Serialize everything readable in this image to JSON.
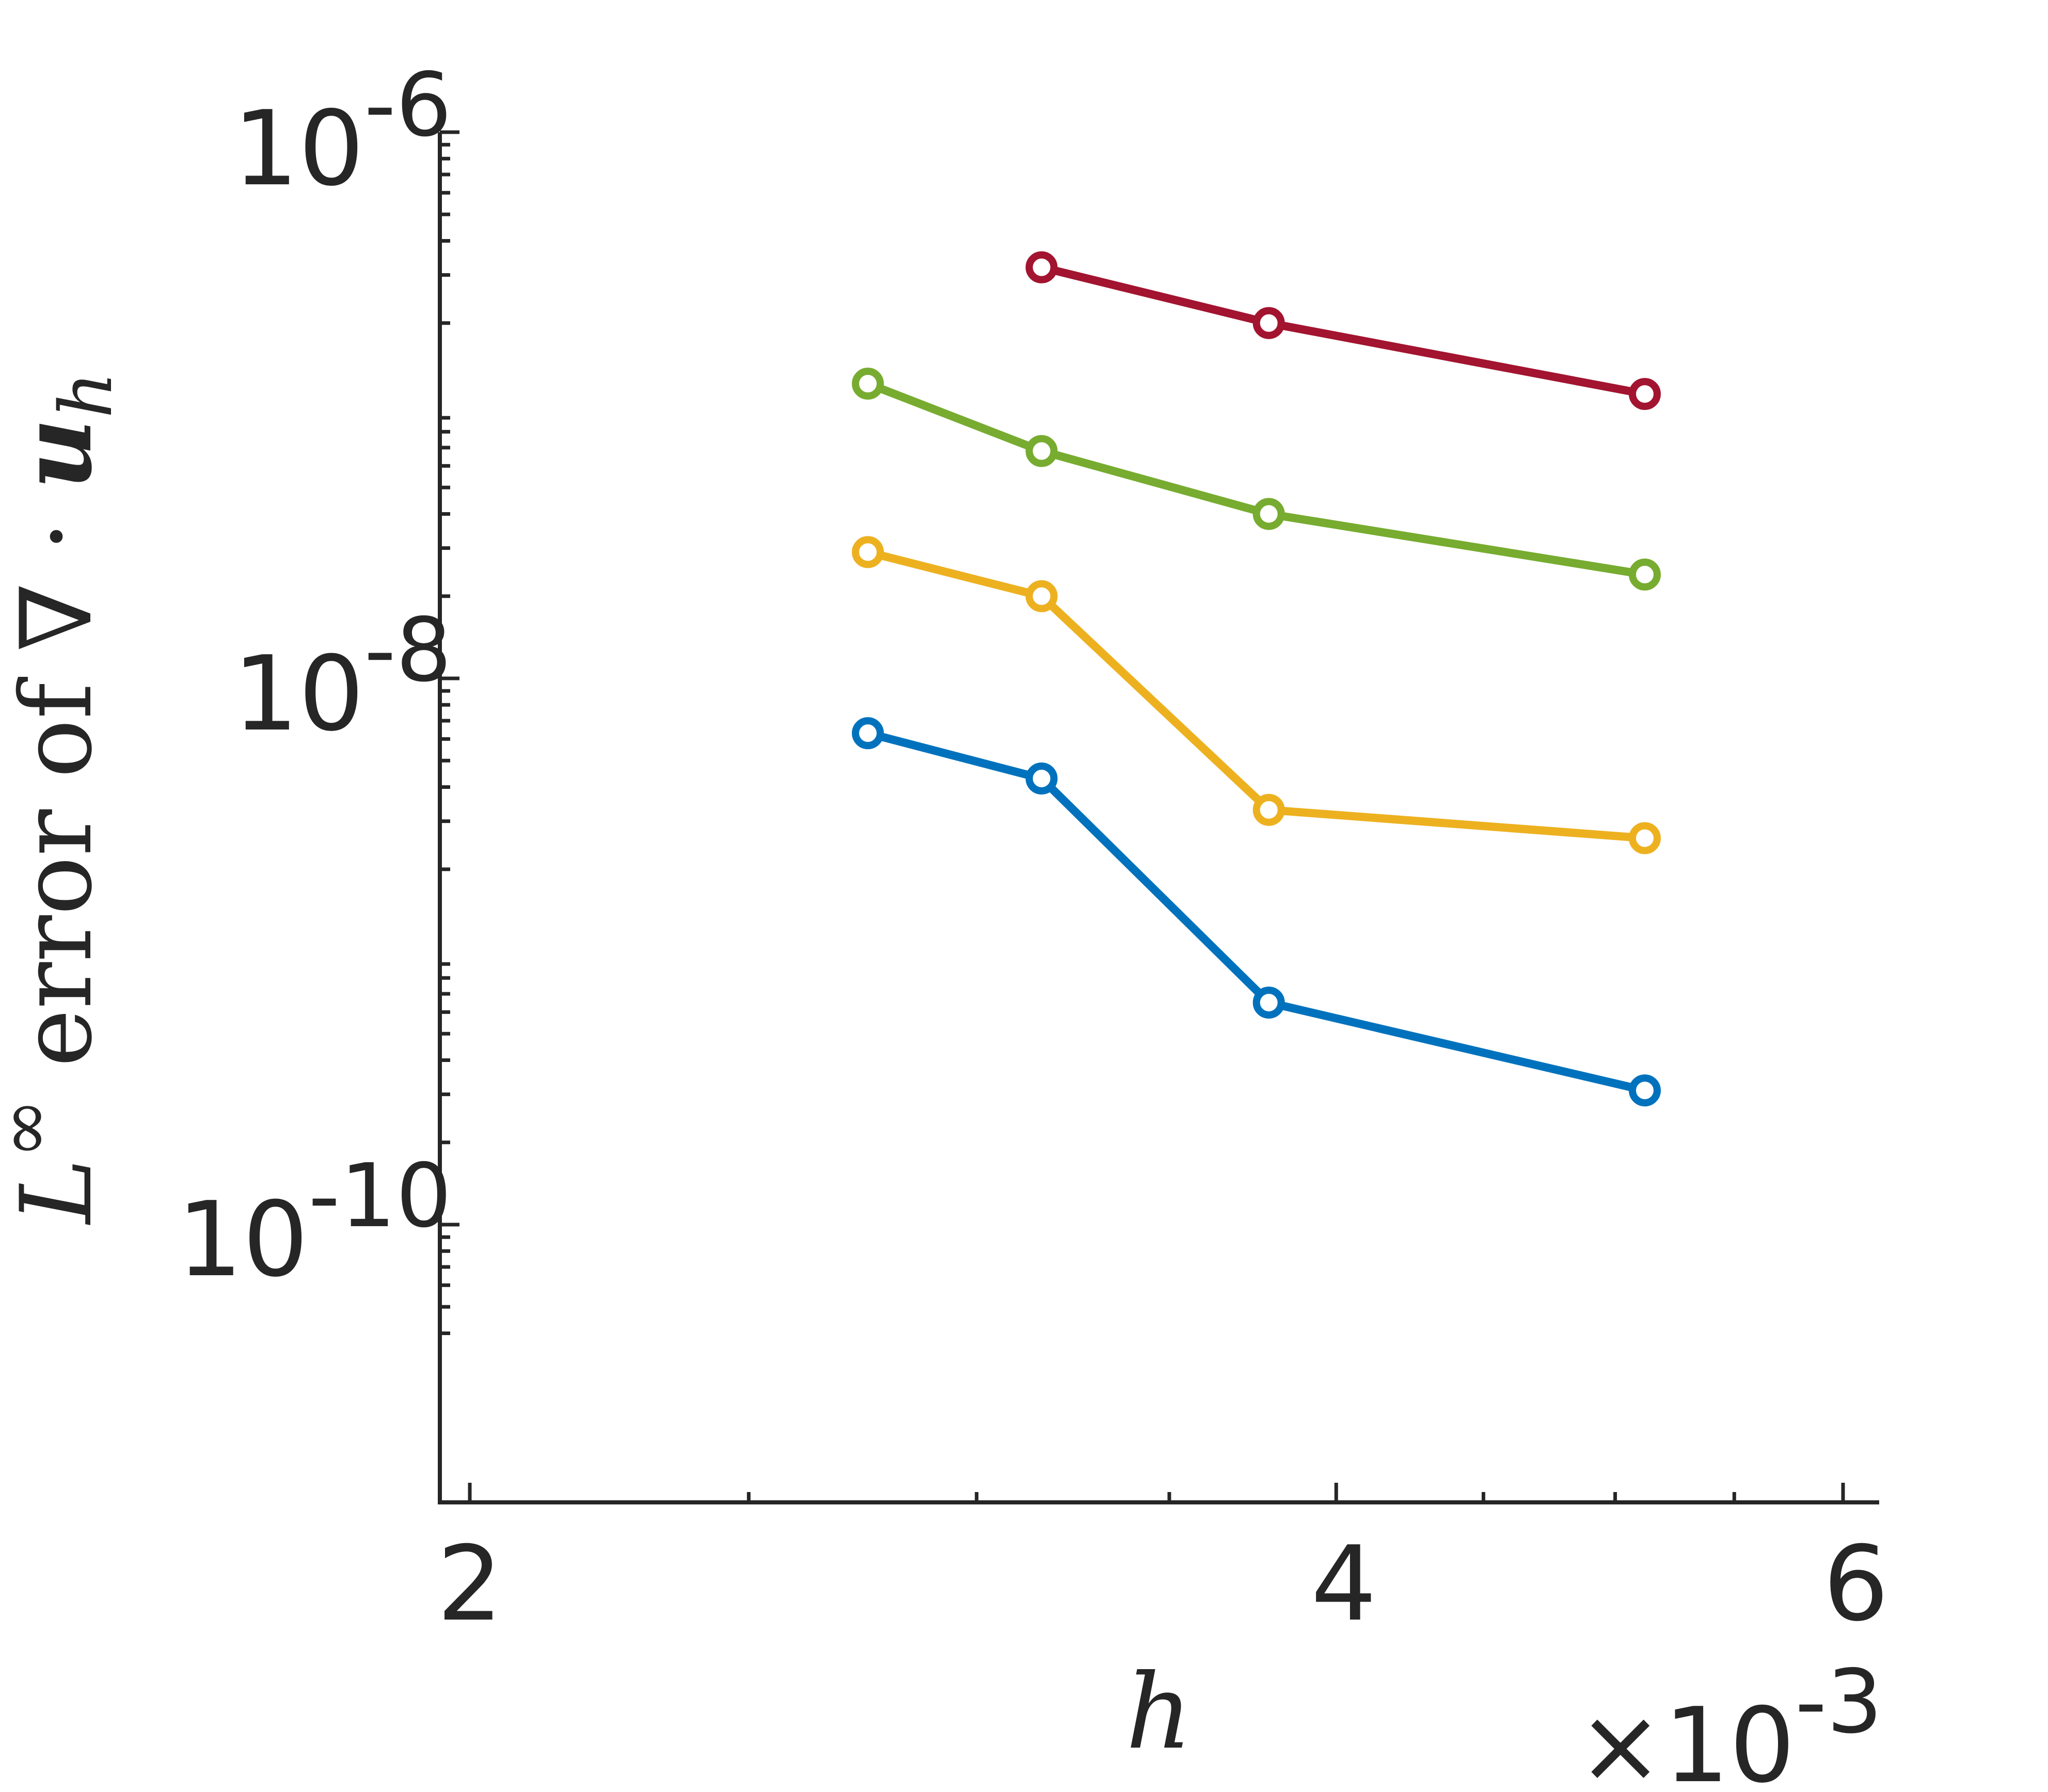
{
  "chart_data": {
    "type": "line",
    "xlabel": "h",
    "ylabel": {
      "base": "L",
      "sup": "∞",
      "text": " error of ∇ · ",
      "var": "u",
      "sub": "h"
    },
    "x_scale": "log",
    "y_scale": "log",
    "xlim": [
      0.002,
      0.006
    ],
    "ylim": [
      4e-11,
      1e-06
    ],
    "x_ticks": [
      {
        "value": 0.002,
        "label": "2"
      },
      {
        "value": 0.004,
        "label": "4"
      },
      {
        "value": 0.006,
        "label": "6"
      }
    ],
    "x_multiplier": {
      "prefix": "×10",
      "exponent": "-3"
    },
    "y_ticks": [
      {
        "value": 1e-10,
        "base": "10",
        "exponent": "-10"
      },
      {
        "value": 1e-08,
        "base": "10",
        "exponent": "-8"
      },
      {
        "value": 1e-06,
        "base": "10",
        "exponent": "-6"
      }
    ],
    "grid": false,
    "legend": "none",
    "series": [
      {
        "color": "#0072BD",
        "x": [
          0.00275,
          0.00316,
          0.00379,
          0.00512
        ],
        "y": [
          6.3e-09,
          4.3e-09,
          6.5e-10,
          3.1e-10
        ]
      },
      {
        "color": "#EDB120",
        "x": [
          0.00275,
          0.00316,
          0.00379,
          0.00512
        ],
        "y": [
          2.9e-08,
          2e-08,
          3.3e-09,
          2.6e-09
        ]
      },
      {
        "color": "#77AC30",
        "x": [
          0.00275,
          0.00316,
          0.00379,
          0.00512
        ],
        "y": [
          1.2e-07,
          6.8e-08,
          4e-08,
          2.4e-08
        ]
      },
      {
        "color": "#A2142F",
        "x": [
          0.00316,
          0.00379,
          0.00512
        ],
        "y": [
          3.2e-07,
          2e-07,
          1.1e-07
        ]
      }
    ]
  }
}
